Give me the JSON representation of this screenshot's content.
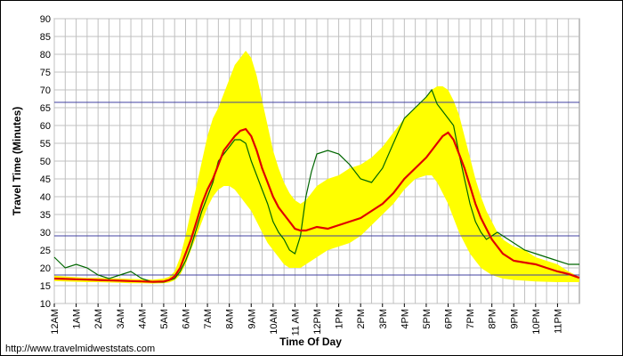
{
  "source_url": "http://www.travelmidweststats.com",
  "chart_data": {
    "type": "line",
    "title": "",
    "xlabel": "Time Of Day",
    "ylabel": "Travel Time (Minutes)",
    "xlim": [
      0,
      24
    ],
    "ylim": [
      10,
      90
    ],
    "x_ticks": [
      {
        "t": 0,
        "label": "12AM"
      },
      {
        "t": 1,
        "label": "1AM"
      },
      {
        "t": 2,
        "label": "2AM"
      },
      {
        "t": 3,
        "label": "3AM"
      },
      {
        "t": 4,
        "label": "4AM"
      },
      {
        "t": 5,
        "label": "5AM"
      },
      {
        "t": 6,
        "label": "6AM"
      },
      {
        "t": 7,
        "label": "7AM"
      },
      {
        "t": 8,
        "label": "8AM"
      },
      {
        "t": 9,
        "label": "9AM"
      },
      {
        "t": 10,
        "label": "10AM"
      },
      {
        "t": 11,
        "label": "11 AM"
      },
      {
        "t": 12,
        "label": "12PM"
      },
      {
        "t": 13,
        "label": "1PM"
      },
      {
        "t": 14,
        "label": "2PM"
      },
      {
        "t": 15,
        "label": "3PM"
      },
      {
        "t": 16,
        "label": "4PM"
      },
      {
        "t": 17,
        "label": "5PM"
      },
      {
        "t": 18,
        "label": "6PM"
      },
      {
        "t": 19,
        "label": "7PM"
      },
      {
        "t": 20,
        "label": "8PM"
      },
      {
        "t": 21,
        "label": "9PM"
      },
      {
        "t": 22,
        "label": "10PM"
      },
      {
        "t": 23,
        "label": "11PM"
      }
    ],
    "y_ticks": [
      10,
      15,
      20,
      25,
      30,
      35,
      40,
      45,
      50,
      55,
      60,
      65,
      70,
      75,
      80,
      85,
      90
    ],
    "grid": true,
    "reference_lines": [
      66.5,
      29,
      18
    ],
    "x": [
      0,
      0.5,
      1,
      1.5,
      2,
      2.5,
      3,
      3.5,
      4,
      4.5,
      5,
      5.25,
      5.5,
      5.75,
      6,
      6.25,
      6.5,
      6.75,
      7,
      7.25,
      7.5,
      7.75,
      8,
      8.25,
      8.5,
      8.75,
      9,
      9.25,
      9.5,
      9.75,
      10,
      10.25,
      10.5,
      10.75,
      11,
      11.25,
      11.5,
      11.75,
      12,
      12.5,
      13,
      13.5,
      14,
      14.5,
      15,
      15.5,
      16,
      16.5,
      17,
      17.25,
      17.5,
      17.75,
      18,
      18.25,
      18.5,
      18.75,
      19,
      19.25,
      19.5,
      19.75,
      20,
      20.25,
      20.5,
      20.75,
      21,
      21.5,
      22,
      22.5,
      23,
      23.5,
      24
    ],
    "series": [
      {
        "name": "",
        "color": "#FFFF00",
        "role": "band",
        "upper": [
          17.8,
          17.6,
          17.4,
          17.2,
          17.2,
          17.1,
          17,
          16.9,
          16.8,
          16.7,
          17,
          17.5,
          19,
          23,
          29,
          36,
          43,
          50,
          57,
          62,
          65,
          69,
          73,
          77,
          79,
          81,
          79,
          74,
          67,
          60,
          53,
          48,
          44,
          41,
          39,
          38,
          39,
          41,
          43,
          45,
          46,
          48,
          49,
          51,
          54,
          58,
          62,
          65,
          68,
          70,
          71,
          71,
          70,
          67,
          63,
          57,
          51,
          45,
          40,
          36,
          33,
          30,
          28,
          27,
          26,
          25,
          23,
          22,
          21,
          19,
          17.5
        ],
        "lower": [
          16.3,
          16.2,
          16.1,
          16.0,
          16.0,
          15.9,
          15.8,
          15.7,
          15.7,
          15.6,
          15.7,
          15.9,
          16.5,
          18,
          21,
          25,
          29,
          33,
          37,
          40,
          42,
          43,
          43,
          42,
          40,
          38,
          36,
          33,
          30,
          27,
          25,
          23,
          21,
          20,
          20,
          20,
          21,
          22,
          23,
          25,
          26,
          27,
          29,
          32,
          35,
          38,
          42,
          45,
          46,
          46,
          44,
          41,
          38,
          34,
          30,
          27,
          24,
          22,
          20,
          19,
          18,
          17.5,
          17,
          16.8,
          16.6,
          16.4,
          16.2,
          16.1,
          16,
          16,
          16
        ]
      },
      {
        "name": "",
        "color": "#E00000",
        "role": "average",
        "values": [
          17,
          16.9,
          16.8,
          16.7,
          16.6,
          16.5,
          16.4,
          16.3,
          16.2,
          16.1,
          16.2,
          16.6,
          17.6,
          20,
          24,
          28,
          33,
          38,
          42,
          45,
          49,
          53,
          55,
          57,
          58.5,
          59,
          57,
          53,
          48,
          44,
          40,
          37,
          35,
          33,
          31,
          30.5,
          30.5,
          31,
          31.5,
          31,
          32,
          33,
          34,
          36,
          38,
          41,
          45,
          48,
          51,
          53,
          55,
          57,
          58,
          56,
          52,
          48,
          43,
          38,
          34,
          31,
          28,
          26,
          24,
          23,
          22,
          21.5,
          21,
          20,
          19,
          18.3,
          17.2
        ]
      },
      {
        "name": "",
        "color": "#006600",
        "role": "today",
        "values": [
          23,
          20,
          21,
          20,
          18,
          17,
          18,
          19,
          17,
          16,
          16,
          16.5,
          17,
          19,
          22,
          26,
          31,
          36,
          40,
          44,
          50,
          52,
          54,
          56,
          56,
          55,
          50,
          46,
          42,
          38,
          33,
          30,
          28,
          25,
          24,
          29,
          40,
          47,
          52,
          53,
          52,
          49,
          45,
          44,
          48,
          55,
          62,
          65,
          68,
          70,
          66,
          64,
          62,
          60,
          52,
          45,
          38,
          33,
          30,
          28,
          29,
          30,
          29,
          28,
          27,
          25,
          24,
          23,
          22,
          21,
          21
        ]
      }
    ]
  }
}
